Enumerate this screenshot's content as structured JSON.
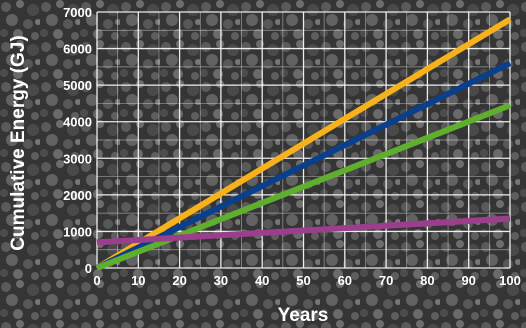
{
  "chart_data": {
    "type": "line",
    "title": "",
    "xlabel": "Years",
    "ylabel": "Cumulative Energy (GJ)",
    "xlim": [
      0,
      100
    ],
    "ylim": [
      0,
      7000
    ],
    "x_ticks": [
      0,
      10,
      20,
      30,
      40,
      50,
      60,
      70,
      80,
      90,
      100
    ],
    "y_ticks": [
      0,
      1000,
      2000,
      3000,
      4000,
      5000,
      6000,
      7000
    ],
    "grid": true,
    "legend": "none",
    "x": [
      0,
      100
    ],
    "series": [
      {
        "color": "#f7b21b",
        "values": [
          0,
          6800
        ]
      },
      {
        "color": "#0a3f8c",
        "values": [
          0,
          5600
        ]
      },
      {
        "color": "#5fae2e",
        "values": [
          0,
          4450
        ]
      },
      {
        "color": "#9b3f8c",
        "values": [
          700,
          1350
        ]
      }
    ]
  },
  "background": {
    "texture": "gravel",
    "colors": [
      "#2e2e2e",
      "#545454",
      "#6e6e6e"
    ]
  }
}
